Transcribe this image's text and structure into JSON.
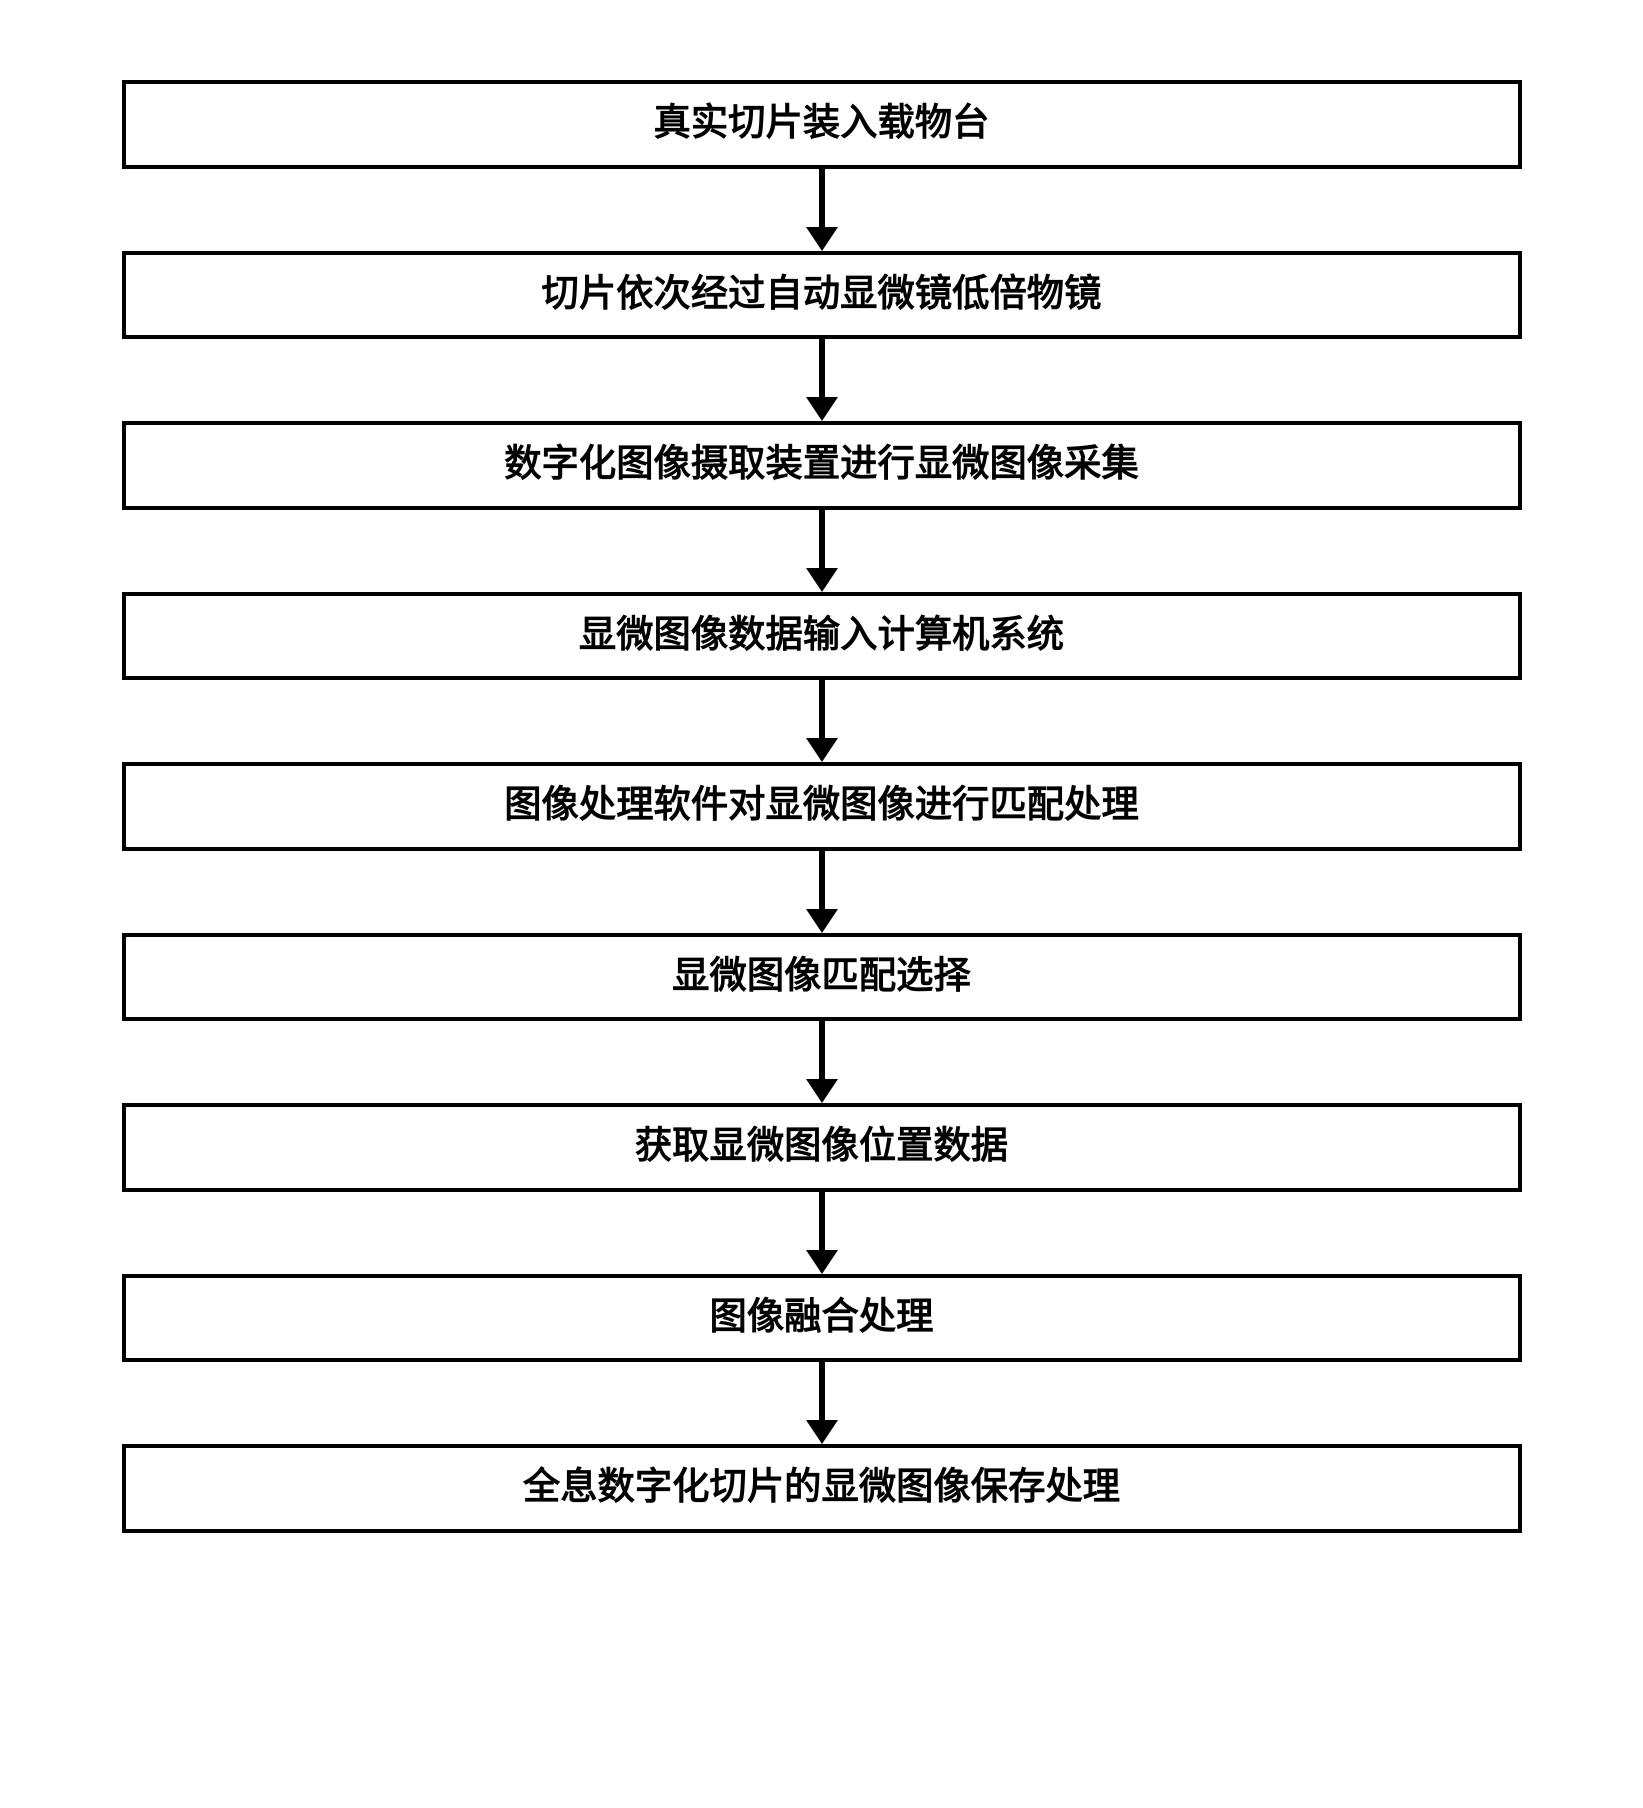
{
  "flowchart": {
    "type": "flowchart",
    "direction": "vertical",
    "background_color": "#ffffff",
    "box_border_color": "#000000",
    "box_border_width": 4,
    "box_background_color": "#ffffff",
    "text_color": "#000000",
    "font_family": "SimSun",
    "font_weight": "bold",
    "font_size_pt": 28,
    "arrow_color": "#000000",
    "arrow_line_width": 6,
    "arrow_head_width": 32,
    "arrow_head_height": 24,
    "arrow_gap_height": 82,
    "box_padding_vertical": 16,
    "box_padding_horizontal": 20,
    "steps": [
      "真实切片装入载物台",
      "切片依次经过自动显微镜低倍物镜",
      "数字化图像摄取装置进行显微图像采集",
      "显微图像数据输入计算机系统",
      "图像处理软件对显微图像进行匹配处理",
      "显微图像匹配选择",
      "获取显微图像位置数据",
      "图像融合处理",
      "全息数字化切片的显微图像保存处理"
    ]
  }
}
